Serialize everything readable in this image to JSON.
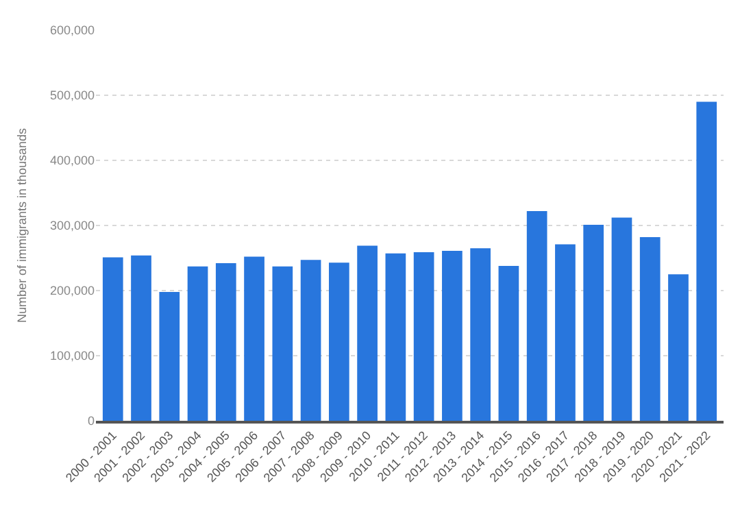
{
  "chart_data": {
    "type": "bar",
    "ylabel": "Number of immigrants in thousands",
    "categories": [
      "2000 - 2001",
      "2001 - 2002",
      "2002 - 2003",
      "2003 - 2004",
      "2004 - 2005",
      "2005 - 2006",
      "2006 - 2007",
      "2007 - 2008",
      "2008 - 2009",
      "2009 - 2010",
      "2010 - 2011",
      "2011 - 2012",
      "2012 - 2013",
      "2013 - 2014",
      "2014 - 2015",
      "2015 - 2016",
      "2016 - 2017",
      "2017 - 2018",
      "2018 - 2019",
      "2019 - 2020",
      "2020 - 2021",
      "2021 - 2022"
    ],
    "values": [
      251000,
      254000,
      198000,
      237000,
      242000,
      252000,
      237000,
      247000,
      243000,
      269000,
      257000,
      259000,
      261000,
      265000,
      238000,
      322000,
      271000,
      301000,
      312000,
      282000,
      225000,
      490000
    ],
    "color": "#2876dd",
    "ylim": [
      0,
      600000
    ],
    "yticks": [
      0,
      {
        "value": 100000,
        "label": "100,000"
      },
      {
        "value": 200000,
        "label": "200,000"
      },
      {
        "value": 300000,
        "label": "300,000"
      },
      {
        "value": 400000,
        "label": "400,000"
      },
      {
        "value": 500000,
        "label": "500,000"
      },
      {
        "value": 600000,
        "label": "600,000"
      }
    ],
    "grid": "y",
    "legend": false
  }
}
